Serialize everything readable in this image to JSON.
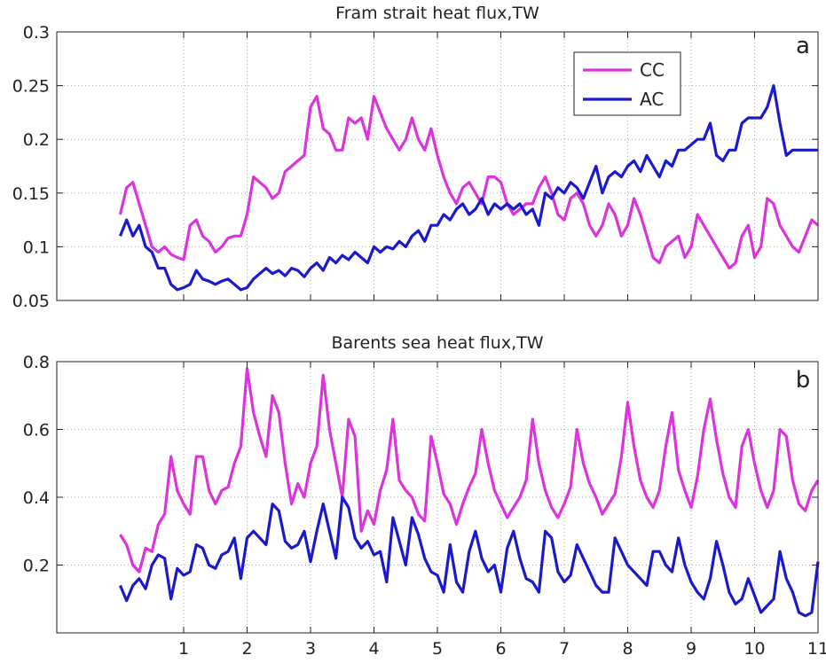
{
  "chart_data": [
    {
      "type": "line",
      "title": "Fram strait heat  flux,TW",
      "panel_label": "a",
      "xlim": [
        -1,
        11
      ],
      "ylim": [
        0.05,
        0.3
      ],
      "x_ticks": [
        1,
        2,
        3,
        4,
        5,
        6,
        7,
        8,
        9,
        10,
        11
      ],
      "y_ticks": [
        0.05,
        0.1,
        0.15,
        0.2,
        0.25,
        0.3
      ],
      "y_tick_labels": [
        "0.05",
        "0.1",
        "0.15",
        "0.2",
        "0.25",
        "0.3"
      ],
      "grid": true,
      "legend_position": "top-right",
      "series": [
        {
          "name": "CC",
          "color": "#dd33dd",
          "x": [
            0.0,
            0.1,
            0.2,
            0.3,
            0.4,
            0.5,
            0.6,
            0.7,
            0.8,
            0.9,
            1.0,
            1.1,
            1.2,
            1.3,
            1.4,
            1.5,
            1.6,
            1.7,
            1.8,
            1.9,
            2.0,
            2.1,
            2.2,
            2.3,
            2.4,
            2.5,
            2.6,
            2.7,
            2.8,
            2.9,
            3.0,
            3.1,
            3.2,
            3.3,
            3.4,
            3.5,
            3.6,
            3.7,
            3.8,
            3.9,
            4.0,
            4.1,
            4.2,
            4.3,
            4.4,
            4.5,
            4.6,
            4.7,
            4.8,
            4.9,
            5.0,
            5.1,
            5.2,
            5.3,
            5.4,
            5.5,
            5.6,
            5.7,
            5.8,
            5.9,
            6.0,
            6.1,
            6.2,
            6.3,
            6.4,
            6.5,
            6.6,
            6.7,
            6.8,
            6.9,
            7.0,
            7.1,
            7.2,
            7.3,
            7.4,
            7.5,
            7.6,
            7.7,
            7.8,
            7.9,
            8.0,
            8.1,
            8.2,
            8.3,
            8.4,
            8.5,
            8.6,
            8.7,
            8.8,
            8.9,
            9.0,
            9.1,
            9.2,
            9.3,
            9.4,
            9.5,
            9.6,
            9.7,
            9.8,
            9.9,
            10.0,
            10.1,
            10.2,
            10.3,
            10.4,
            10.5,
            10.6,
            10.7,
            10.8,
            10.9,
            11.0
          ],
          "values": [
            0.13,
            0.155,
            0.16,
            0.14,
            0.12,
            0.1,
            0.095,
            0.1,
            0.093,
            0.09,
            0.088,
            0.12,
            0.125,
            0.11,
            0.105,
            0.095,
            0.1,
            0.108,
            0.11,
            0.11,
            0.13,
            0.165,
            0.16,
            0.155,
            0.145,
            0.15,
            0.17,
            0.175,
            0.18,
            0.185,
            0.23,
            0.24,
            0.21,
            0.205,
            0.19,
            0.19,
            0.22,
            0.215,
            0.22,
            0.2,
            0.24,
            0.225,
            0.21,
            0.2,
            0.19,
            0.2,
            0.22,
            0.2,
            0.19,
            0.21,
            0.185,
            0.165,
            0.15,
            0.14,
            0.155,
            0.16,
            0.15,
            0.14,
            0.165,
            0.165,
            0.16,
            0.14,
            0.13,
            0.135,
            0.14,
            0.14,
            0.155,
            0.165,
            0.15,
            0.13,
            0.125,
            0.145,
            0.15,
            0.14,
            0.12,
            0.11,
            0.12,
            0.14,
            0.13,
            0.11,
            0.12,
            0.145,
            0.13,
            0.11,
            0.09,
            0.085,
            0.1,
            0.105,
            0.11,
            0.09,
            0.1,
            0.13,
            0.12,
            0.11,
            0.1,
            0.09,
            0.08,
            0.085,
            0.11,
            0.12,
            0.09,
            0.1,
            0.145,
            0.14,
            0.12,
            0.11,
            0.1,
            0.095,
            0.11,
            0.125,
            0.12
          ]
        },
        {
          "name": "AC",
          "color": "#1a1acc",
          "x": [
            0.0,
            0.1,
            0.2,
            0.3,
            0.4,
            0.5,
            0.6,
            0.7,
            0.8,
            0.9,
            1.0,
            1.1,
            1.2,
            1.3,
            1.4,
            1.5,
            1.6,
            1.7,
            1.8,
            1.9,
            2.0,
            2.1,
            2.2,
            2.3,
            2.4,
            2.5,
            2.6,
            2.7,
            2.8,
            2.9,
            3.0,
            3.1,
            3.2,
            3.3,
            3.4,
            3.5,
            3.6,
            3.7,
            3.8,
            3.9,
            4.0,
            4.1,
            4.2,
            4.3,
            4.4,
            4.5,
            4.6,
            4.7,
            4.8,
            4.9,
            5.0,
            5.1,
            5.2,
            5.3,
            5.4,
            5.5,
            5.6,
            5.7,
            5.8,
            5.9,
            6.0,
            6.1,
            6.2,
            6.3,
            6.4,
            6.5,
            6.6,
            6.7,
            6.8,
            6.9,
            7.0,
            7.1,
            7.2,
            7.3,
            7.4,
            7.5,
            7.6,
            7.7,
            7.8,
            7.9,
            8.0,
            8.1,
            8.2,
            8.3,
            8.4,
            8.5,
            8.6,
            8.7,
            8.8,
            8.9,
            9.0,
            9.1,
            9.2,
            9.3,
            9.4,
            9.5,
            9.6,
            9.7,
            9.8,
            9.9,
            10.0,
            10.1,
            10.2,
            10.3,
            10.4,
            10.5,
            10.6,
            10.7,
            10.8,
            10.9,
            11.0
          ],
          "values": [
            0.11,
            0.125,
            0.11,
            0.12,
            0.1,
            0.095,
            0.08,
            0.08,
            0.065,
            0.06,
            0.062,
            0.065,
            0.078,
            0.07,
            0.068,
            0.065,
            0.068,
            0.07,
            0.065,
            0.06,
            0.062,
            0.07,
            0.075,
            0.08,
            0.075,
            0.078,
            0.073,
            0.08,
            0.078,
            0.072,
            0.08,
            0.085,
            0.078,
            0.09,
            0.085,
            0.092,
            0.088,
            0.095,
            0.09,
            0.085,
            0.1,
            0.095,
            0.1,
            0.098,
            0.105,
            0.1,
            0.11,
            0.115,
            0.105,
            0.12,
            0.12,
            0.13,
            0.125,
            0.135,
            0.14,
            0.13,
            0.135,
            0.145,
            0.13,
            0.14,
            0.135,
            0.14,
            0.135,
            0.14,
            0.13,
            0.135,
            0.12,
            0.15,
            0.145,
            0.155,
            0.15,
            0.16,
            0.155,
            0.145,
            0.16,
            0.175,
            0.15,
            0.165,
            0.17,
            0.165,
            0.175,
            0.18,
            0.17,
            0.185,
            0.175,
            0.165,
            0.18,
            0.175,
            0.19,
            0.19,
            0.195,
            0.2,
            0.2,
            0.215,
            0.185,
            0.18,
            0.19,
            0.19,
            0.215,
            0.22,
            0.22,
            0.22,
            0.23,
            0.25,
            0.215,
            0.185,
            0.19,
            0.19,
            0.19,
            0.19,
            0.19
          ]
        }
      ]
    },
    {
      "type": "line",
      "title": "Barents sea heat flux,TW",
      "panel_label": "b",
      "xlim": [
        -1,
        11
      ],
      "ylim": [
        0,
        0.8
      ],
      "x_ticks": [
        1,
        2,
        3,
        4,
        5,
        6,
        7,
        8,
        9,
        10,
        11
      ],
      "y_ticks": [
        0.2,
        0.4,
        0.6,
        0.8
      ],
      "y_tick_labels": [
        "0.2",
        "0.4",
        "0.6",
        "0.8"
      ],
      "grid": true,
      "series": [
        {
          "name": "CC",
          "color": "#dd33dd",
          "x": [
            0.0,
            0.1,
            0.2,
            0.3,
            0.4,
            0.5,
            0.6,
            0.7,
            0.8,
            0.9,
            1.0,
            1.1,
            1.2,
            1.3,
            1.4,
            1.5,
            1.6,
            1.7,
            1.8,
            1.9,
            2.0,
            2.1,
            2.2,
            2.3,
            2.4,
            2.5,
            2.6,
            2.7,
            2.8,
            2.9,
            3.0,
            3.1,
            3.2,
            3.3,
            3.4,
            3.5,
            3.6,
            3.7,
            3.8,
            3.9,
            4.0,
            4.1,
            4.2,
            4.3,
            4.4,
            4.5,
            4.6,
            4.7,
            4.8,
            4.9,
            5.0,
            5.1,
            5.2,
            5.3,
            5.4,
            5.5,
            5.6,
            5.7,
            5.8,
            5.9,
            6.0,
            6.1,
            6.2,
            6.3,
            6.4,
            6.5,
            6.6,
            6.7,
            6.8,
            6.9,
            7.0,
            7.1,
            7.2,
            7.3,
            7.4,
            7.5,
            7.6,
            7.7,
            7.8,
            7.9,
            8.0,
            8.1,
            8.2,
            8.3,
            8.4,
            8.5,
            8.6,
            8.7,
            8.8,
            8.9,
            9.0,
            9.1,
            9.2,
            9.3,
            9.4,
            9.5,
            9.6,
            9.7,
            9.8,
            9.9,
            10.0,
            10.1,
            10.2,
            10.3,
            10.4,
            10.5,
            10.6,
            10.7,
            10.8,
            10.9,
            11.0
          ],
          "values": [
            0.29,
            0.26,
            0.2,
            0.18,
            0.25,
            0.24,
            0.32,
            0.35,
            0.52,
            0.42,
            0.38,
            0.35,
            0.52,
            0.52,
            0.42,
            0.38,
            0.42,
            0.43,
            0.5,
            0.55,
            0.78,
            0.65,
            0.58,
            0.52,
            0.7,
            0.65,
            0.5,
            0.38,
            0.44,
            0.4,
            0.5,
            0.55,
            0.76,
            0.6,
            0.5,
            0.4,
            0.63,
            0.58,
            0.3,
            0.36,
            0.32,
            0.42,
            0.48,
            0.63,
            0.45,
            0.42,
            0.4,
            0.35,
            0.33,
            0.58,
            0.5,
            0.41,
            0.38,
            0.32,
            0.38,
            0.43,
            0.47,
            0.6,
            0.5,
            0.42,
            0.38,
            0.34,
            0.37,
            0.4,
            0.45,
            0.63,
            0.5,
            0.42,
            0.37,
            0.34,
            0.38,
            0.43,
            0.6,
            0.5,
            0.44,
            0.4,
            0.35,
            0.38,
            0.41,
            0.52,
            0.68,
            0.55,
            0.45,
            0.4,
            0.37,
            0.42,
            0.55,
            0.65,
            0.48,
            0.42,
            0.37,
            0.46,
            0.6,
            0.69,
            0.57,
            0.47,
            0.4,
            0.37,
            0.55,
            0.6,
            0.5,
            0.42,
            0.37,
            0.42,
            0.6,
            0.58,
            0.45,
            0.38,
            0.36,
            0.42,
            0.45
          ]
        },
        {
          "name": "AC",
          "color": "#1a1acc",
          "x": [
            0.0,
            0.1,
            0.2,
            0.3,
            0.4,
            0.5,
            0.6,
            0.7,
            0.8,
            0.9,
            1.0,
            1.1,
            1.2,
            1.3,
            1.4,
            1.5,
            1.6,
            1.7,
            1.8,
            1.9,
            2.0,
            2.1,
            2.2,
            2.3,
            2.4,
            2.5,
            2.6,
            2.7,
            2.8,
            2.9,
            3.0,
            3.1,
            3.2,
            3.3,
            3.4,
            3.5,
            3.6,
            3.7,
            3.8,
            3.9,
            4.0,
            4.1,
            4.2,
            4.3,
            4.4,
            4.5,
            4.6,
            4.7,
            4.8,
            4.9,
            5.0,
            5.1,
            5.2,
            5.3,
            5.4,
            5.5,
            5.6,
            5.7,
            5.8,
            5.9,
            6.0,
            6.1,
            6.2,
            6.3,
            6.4,
            6.5,
            6.6,
            6.7,
            6.8,
            6.9,
            7.0,
            7.1,
            7.2,
            7.3,
            7.4,
            7.5,
            7.6,
            7.7,
            7.8,
            7.9,
            8.0,
            8.1,
            8.2,
            8.3,
            8.4,
            8.5,
            8.6,
            8.7,
            8.8,
            8.9,
            9.0,
            9.1,
            9.2,
            9.3,
            9.4,
            9.5,
            9.6,
            9.7,
            9.8,
            9.9,
            10.0,
            10.1,
            10.2,
            10.3,
            10.4,
            10.5,
            10.6,
            10.7,
            10.8,
            10.9,
            11.0
          ],
          "values": [
            0.14,
            0.095,
            0.14,
            0.16,
            0.13,
            0.2,
            0.23,
            0.22,
            0.1,
            0.19,
            0.17,
            0.18,
            0.26,
            0.25,
            0.2,
            0.19,
            0.23,
            0.24,
            0.28,
            0.16,
            0.28,
            0.3,
            0.28,
            0.26,
            0.38,
            0.36,
            0.27,
            0.25,
            0.26,
            0.3,
            0.21,
            0.3,
            0.38,
            0.3,
            0.22,
            0.4,
            0.37,
            0.28,
            0.25,
            0.27,
            0.23,
            0.24,
            0.15,
            0.34,
            0.27,
            0.2,
            0.34,
            0.29,
            0.22,
            0.18,
            0.17,
            0.12,
            0.26,
            0.15,
            0.12,
            0.24,
            0.3,
            0.22,
            0.18,
            0.2,
            0.12,
            0.25,
            0.3,
            0.22,
            0.16,
            0.15,
            0.12,
            0.3,
            0.28,
            0.18,
            0.15,
            0.17,
            0.26,
            0.22,
            0.18,
            0.14,
            0.12,
            0.12,
            0.28,
            0.24,
            0.2,
            0.18,
            0.16,
            0.14,
            0.24,
            0.24,
            0.2,
            0.18,
            0.28,
            0.2,
            0.15,
            0.12,
            0.1,
            0.16,
            0.27,
            0.2,
            0.12,
            0.085,
            0.1,
            0.16,
            0.11,
            0.06,
            0.08,
            0.1,
            0.24,
            0.16,
            0.12,
            0.06,
            0.05,
            0.06,
            0.21
          ]
        }
      ]
    }
  ]
}
